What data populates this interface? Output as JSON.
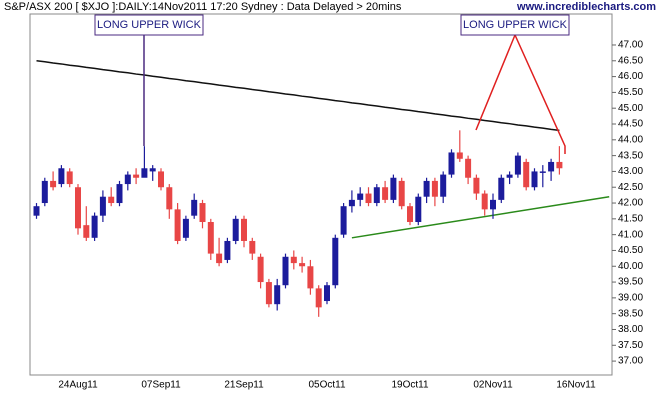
{
  "chart_data": {
    "type": "candlestick",
    "title": "S&P/ASX 200 [ $XJO ]:DAILY:14Nov2011 17:20 Sydney : Data Delayed > 20mins",
    "source": "www.incrediblecharts.com",
    "annotations": [
      "LONG UPPER WICK",
      "LONG UPPER WICK"
    ],
    "categories": [
      null,
      null,
      null,
      null,
      null,
      "24Aug11",
      null,
      null,
      null,
      null,
      null,
      null,
      null,
      null,
      null,
      "07Sep11",
      null,
      null,
      null,
      null,
      null,
      null,
      null,
      null,
      null,
      "21Sep11",
      null,
      null,
      null,
      null,
      null,
      null,
      null,
      null,
      null,
      "05Oct11",
      null,
      null,
      null,
      null,
      null,
      null,
      null,
      null,
      null,
      "19Oct11",
      null,
      null,
      null,
      null,
      null,
      null,
      null,
      null,
      null,
      "02Nov11",
      null,
      null,
      null,
      null,
      null,
      null,
      null,
      null,
      null,
      "16Nov11"
    ],
    "open": [
      41.6,
      42.0,
      42.7,
      42.6,
      43.0,
      42.5,
      41.3,
      40.9,
      41.6,
      42.2,
      42.0,
      42.6,
      42.9,
      42.8,
      43.0,
      43.0,
      42.5,
      41.8,
      40.9,
      41.6,
      42.0,
      41.4,
      40.4,
      40.2,
      40.8,
      41.5,
      40.8,
      40.3,
      39.5,
      38.8,
      39.4,
      40.3,
      40.1,
      40.0,
      39.3,
      38.9,
      39.4,
      41.0,
      41.9,
      42.1,
      42.3,
      42.0,
      42.5,
      42.1,
      42.7,
      41.9,
      41.4,
      42.2,
      42.7,
      42.2,
      42.9,
      43.6,
      43.4,
      42.8,
      42.3,
      41.8,
      42.1,
      42.8,
      42.9,
      43.3,
      42.5,
      43.0,
      43.0,
      43.3,
      null,
      null
    ],
    "high": [
      42.0,
      42.8,
      43.0,
      43.2,
      43.1,
      42.6,
      41.9,
      41.7,
      42.4,
      42.5,
      42.7,
      43.0,
      43.1,
      43.8,
      43.2,
      43.1,
      42.6,
      42.0,
      41.6,
      42.3,
      42.1,
      41.5,
      40.9,
      40.9,
      41.6,
      41.6,
      40.9,
      40.4,
      39.6,
      39.6,
      40.4,
      40.5,
      40.3,
      40.2,
      39.4,
      39.5,
      41.0,
      42.0,
      42.4,
      42.5,
      42.5,
      42.6,
      42.7,
      42.9,
      42.8,
      42.0,
      42.3,
      42.8,
      42.8,
      43.0,
      43.7,
      44.3,
      43.5,
      42.9,
      42.4,
      42.3,
      42.9,
      43.0,
      43.6,
      43.4,
      43.1,
      43.2,
      43.4,
      43.8,
      null,
      null
    ],
    "low": [
      41.5,
      41.9,
      42.4,
      42.5,
      42.5,
      41.0,
      40.8,
      40.8,
      41.4,
      41.9,
      41.9,
      42.4,
      42.6,
      42.9,
      42.7,
      42.4,
      41.5,
      40.7,
      40.8,
      41.5,
      41.2,
      40.2,
      40.0,
      40.1,
      40.7,
      40.6,
      40.2,
      39.3,
      38.7,
      38.6,
      39.3,
      39.9,
      39.8,
      39.1,
      38.4,
      38.8,
      39.3,
      40.9,
      41.7,
      41.9,
      41.9,
      41.9,
      42.0,
      42.0,
      41.8,
      41.3,
      41.3,
      42.0,
      41.9,
      42.0,
      42.8,
      43.3,
      42.6,
      42.1,
      41.6,
      41.5,
      42.0,
      42.6,
      42.8,
      42.4,
      42.4,
      42.5,
      42.7,
      42.9,
      null,
      null
    ],
    "close": [
      41.9,
      42.7,
      42.5,
      43.1,
      42.6,
      41.2,
      40.9,
      41.6,
      42.2,
      42.0,
      42.6,
      42.9,
      42.8,
      43.1,
      43.1,
      42.5,
      41.8,
      40.8,
      41.5,
      42.1,
      41.4,
      40.4,
      40.1,
      40.8,
      41.5,
      40.8,
      40.4,
      39.5,
      38.8,
      39.4,
      40.3,
      40.1,
      40.0,
      39.3,
      38.7,
      39.4,
      40.9,
      41.9,
      42.1,
      42.3,
      42.0,
      42.5,
      42.1,
      42.8,
      41.9,
      41.4,
      42.2,
      42.7,
      42.2,
      42.9,
      43.6,
      43.4,
      42.8,
      42.3,
      41.8,
      42.1,
      42.8,
      42.9,
      43.5,
      42.5,
      43.0,
      43.0,
      43.3,
      43.1,
      null,
      null
    ],
    "up_color": "#1c1c9c",
    "down_color": "#e84646",
    "moving_average": {
      "color": "#111111",
      "values": [
        46.5,
        46.47,
        46.43,
        46.4,
        46.36,
        46.33,
        46.29,
        46.26,
        46.22,
        46.19,
        46.15,
        46.12,
        46.08,
        46.05,
        46.01,
        45.98,
        45.94,
        45.91,
        45.87,
        45.84,
        45.8,
        45.77,
        45.73,
        45.7,
        45.66,
        45.63,
        45.59,
        45.56,
        45.52,
        45.49,
        45.45,
        45.42,
        45.38,
        45.35,
        45.31,
        45.28,
        45.24,
        45.21,
        45.17,
        45.14,
        45.1,
        45.07,
        45.03,
        45.0,
        44.96,
        44.93,
        44.89,
        44.86,
        44.82,
        44.79,
        44.75,
        44.72,
        44.68,
        44.65,
        44.61,
        44.58,
        44.54,
        44.51,
        44.47,
        44.44,
        44.4,
        44.37,
        44.33,
        44.3,
        null,
        null
      ]
    },
    "trendline": {
      "color": "#2a8a1a",
      "x": [
        38,
        69
      ],
      "y": [
        40.9,
        42.2
      ]
    },
    "ylim": [
      36.56,
      47.98
    ],
    "yticks": [
      {
        "value": 37,
        "label": "37.00"
      },
      {
        "value": 37.5,
        "label": "37.50"
      },
      {
        "value": 38,
        "label": "38.00"
      },
      {
        "value": 38.5,
        "label": "38.50"
      },
      {
        "value": 39,
        "label": "39.00"
      },
      {
        "value": 39.5,
        "label": "39.50"
      },
      {
        "value": 40,
        "label": "40.00"
      },
      {
        "value": 40.5,
        "label": "40.50"
      },
      {
        "value": 41,
        "label": "41.00"
      },
      {
        "value": 41.5,
        "label": "41.50"
      },
      {
        "value": 42,
        "label": "42.00"
      },
      {
        "value": 42.5,
        "label": "42.50"
      },
      {
        "value": 43,
        "label": "43.00"
      },
      {
        "value": 43.5,
        "label": "43.50"
      },
      {
        "value": 44,
        "label": "44.00"
      },
      {
        "value": 44.5,
        "label": "44.50"
      },
      {
        "value": 45,
        "label": "45.00"
      },
      {
        "value": 45.5,
        "label": "45.50"
      },
      {
        "value": 46,
        "label": "46.00"
      },
      {
        "value": 46.5,
        "label": "46.50"
      },
      {
        "value": 47,
        "label": "47.00"
      }
    ]
  }
}
